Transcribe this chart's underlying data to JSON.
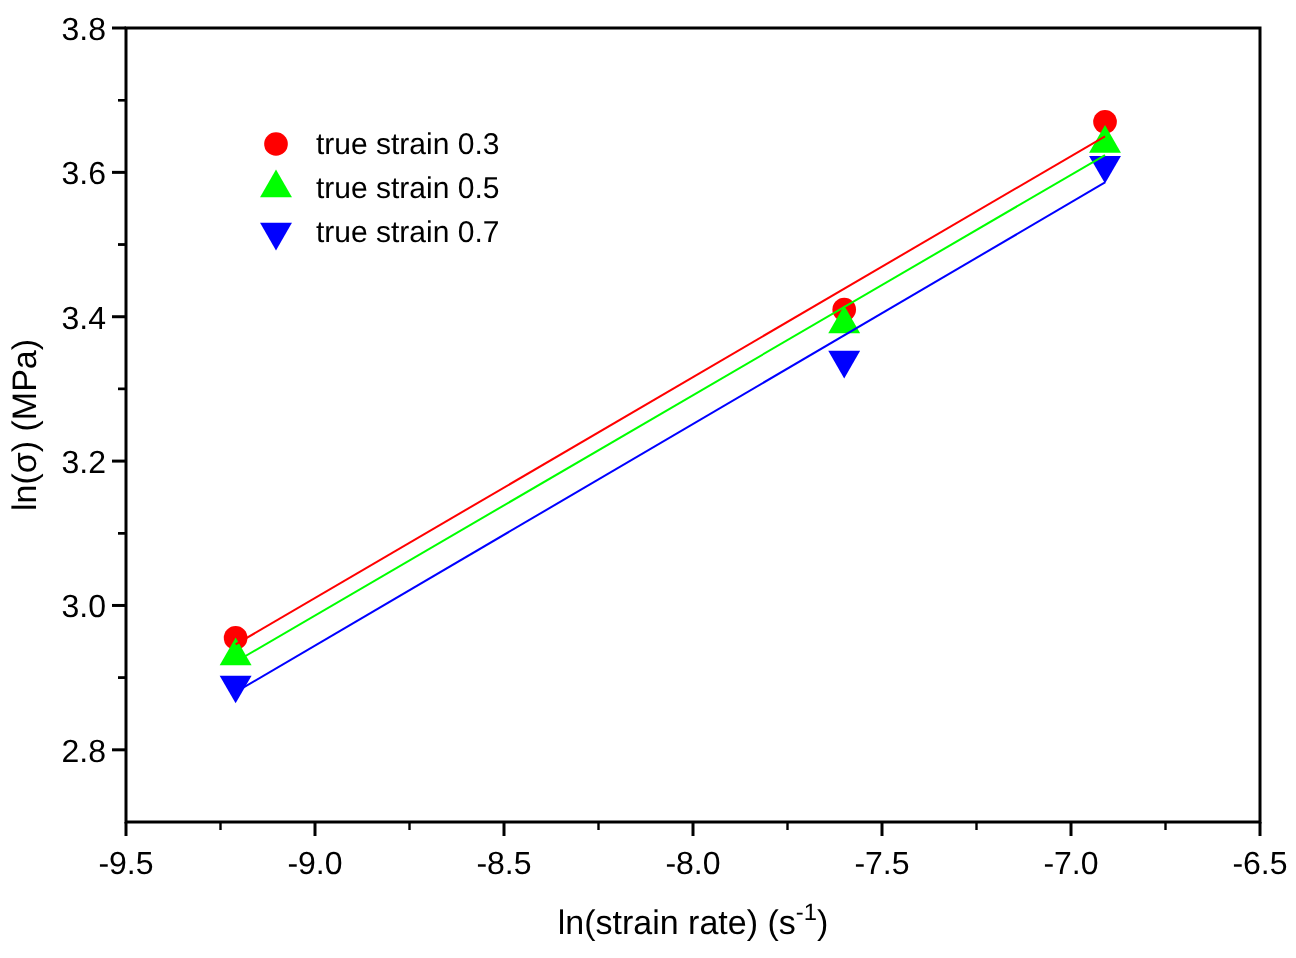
{
  "chart_data": {
    "type": "scatter",
    "xlabel": "ln(strain rate) (s$^{-1}$)",
    "ylabel": "ln(σ) (MPa)",
    "xlim": [
      -9.5,
      -6.5
    ],
    "xticks": [
      -9.5,
      {
        "value": -9,
        "label": "-9.0"
      },
      -8.5,
      {
        "value": -8,
        "label": "-8.0"
      },
      -7.5,
      {
        "value": -7,
        "label": "-7.0"
      },
      -6.5
    ],
    "ylim": [
      2.7,
      3.8
    ],
    "yticks": [
      2.8,
      {
        "value": 3,
        "label": "3.0"
      },
      3.2,
      3.4,
      3.6,
      3.8
    ],
    "grid": false,
    "legend": "top left",
    "series": [
      {
        "name": "true strain 0.3",
        "color": "#ff0000",
        "marker": "circle",
        "x": [
          -9.21,
          -7.6,
          -6.91
        ],
        "values": [
          2.955,
          3.41,
          3.67
        ]
      },
      {
        "name": "true strain 0.5",
        "color": "#00ff00",
        "marker": "triangle",
        "x": [
          -9.21,
          -7.6,
          -6.91
        ],
        "values": [
          2.93,
          3.39,
          3.64
        ]
      },
      {
        "name": "true strain 0.7",
        "color": "#0000ff",
        "marker": "triangle-down",
        "x": [
          -9.21,
          -7.6,
          -6.91
        ],
        "values": [
          2.89,
          3.34,
          3.61
        ]
      },
      {
        "type": "line",
        "color": "#ff0000",
        "marker": "none",
        "x": [
          -9.21,
          -6.91
        ],
        "values": [
          2.946,
          3.65
        ]
      },
      {
        "type": "line",
        "color": "#00ff00",
        "marker": "none",
        "x": [
          -9.21,
          -6.91
        ],
        "values": [
          2.922,
          3.624
        ]
      },
      {
        "type": "line",
        "color": "#0000ff",
        "marker": "none",
        "x": [
          -9.21,
          -6.91
        ],
        "values": [
          2.88,
          3.586
        ]
      }
    ]
  }
}
